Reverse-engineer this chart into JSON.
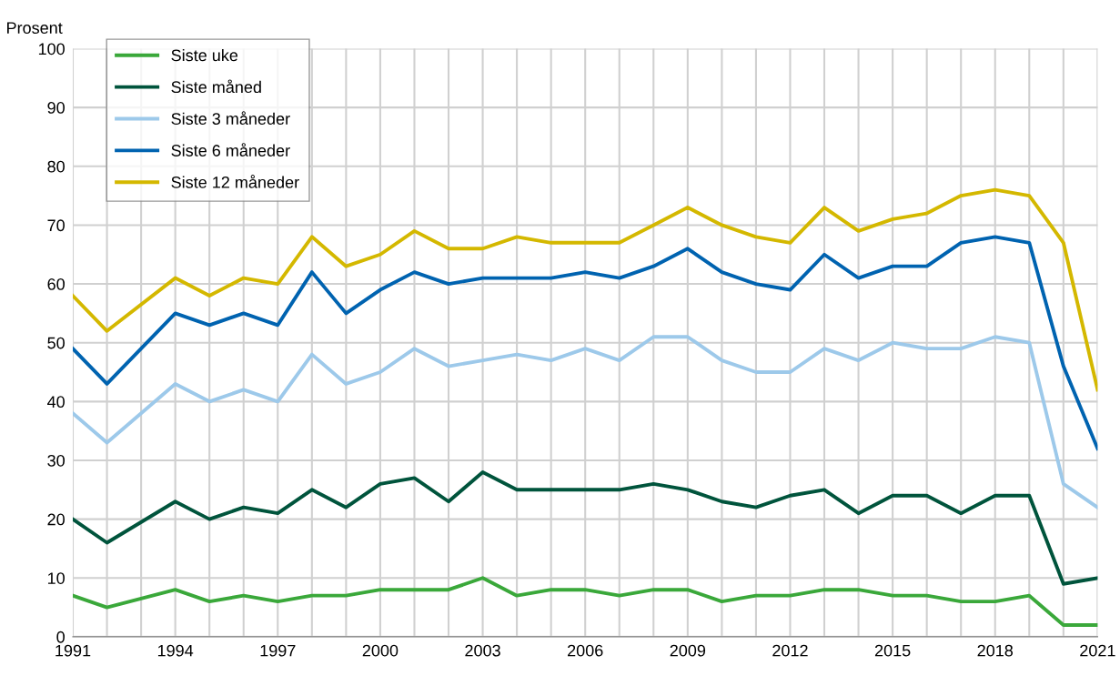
{
  "chart_data": {
    "type": "line",
    "ylabel": "Prosent",
    "x": [
      1991,
      1992,
      1994,
      1995,
      1996,
      1997,
      1998,
      1999,
      2000,
      2001,
      2002,
      2003,
      2004,
      2005,
      2006,
      2007,
      2008,
      2009,
      2010,
      2011,
      2012,
      2013,
      2014,
      2015,
      2016,
      2017,
      2018,
      2019,
      2020,
      2021
    ],
    "series": [
      {
        "name": "Siste uke",
        "color": "#3aa83a",
        "values": [
          7,
          5,
          8,
          6,
          7,
          6,
          7,
          7,
          8,
          8,
          8,
          10,
          7,
          8,
          8,
          7,
          8,
          8,
          6,
          7,
          7,
          8,
          8,
          7,
          7,
          6,
          6,
          7,
          2,
          2
        ]
      },
      {
        "name": "Siste måned",
        "color": "#00543c",
        "values": [
          20,
          16,
          23,
          20,
          22,
          21,
          25,
          22,
          26,
          27,
          23,
          28,
          25,
          25,
          25,
          25,
          26,
          25,
          23,
          22,
          24,
          25,
          21,
          24,
          24,
          21,
          24,
          24,
          9,
          10
        ]
      },
      {
        "name": "Siste 3 måneder",
        "color": "#9dc9ea",
        "values": [
          38,
          33,
          43,
          40,
          42,
          40,
          48,
          43,
          45,
          49,
          46,
          47,
          48,
          47,
          49,
          47,
          51,
          51,
          47,
          45,
          45,
          49,
          47,
          50,
          49,
          49,
          51,
          50,
          26,
          22
        ]
      },
      {
        "name": "Siste 6 måneder",
        "color": "#0063b0",
        "values": [
          49,
          43,
          55,
          53,
          55,
          53,
          62,
          55,
          59,
          62,
          60,
          61,
          61,
          61,
          62,
          61,
          63,
          66,
          62,
          60,
          59,
          65,
          61,
          63,
          63,
          67,
          68,
          67,
          46,
          32
        ]
      },
      {
        "name": "Siste 12 måneder",
        "color": "#d4b800",
        "values": [
          58,
          52,
          61,
          58,
          61,
          60,
          68,
          63,
          65,
          69,
          66,
          66,
          68,
          67,
          67,
          67,
          70,
          73,
          70,
          68,
          67,
          73,
          69,
          71,
          72,
          75,
          76,
          75,
          67,
          42
        ]
      }
    ],
    "xlim": [
      1991,
      2021
    ],
    "xticks": [
      1991,
      {
        "value": 1992,
        "label": null
      },
      {
        "value": 1993,
        "label": null
      },
      1994,
      {
        "value": 1995,
        "label": null
      },
      {
        "value": 1996,
        "label": null
      },
      1997,
      {
        "value": 1998,
        "label": null
      },
      {
        "value": 1999,
        "label": null
      },
      2000,
      {
        "value": 2001,
        "label": null
      },
      {
        "value": 2002,
        "label": null
      },
      2003,
      {
        "value": 2004,
        "label": null
      },
      {
        "value": 2005,
        "label": null
      },
      2006,
      {
        "value": 2007,
        "label": null
      },
      {
        "value": 2008,
        "label": null
      },
      2009,
      {
        "value": 2010,
        "label": null
      },
      {
        "value": 2011,
        "label": null
      },
      2012,
      {
        "value": 2013,
        "label": null
      },
      {
        "value": 2014,
        "label": null
      },
      2015,
      {
        "value": 2016,
        "label": null
      },
      {
        "value": 2017,
        "label": null
      },
      2018,
      {
        "value": 2019,
        "label": null
      },
      {
        "value": 2020,
        "label": null
      },
      2021
    ],
    "ylim": [
      0,
      100
    ],
    "yticks": [
      0,
      10,
      20,
      30,
      40,
      50,
      60,
      70,
      80,
      90,
      100
    ],
    "grid": true,
    "legend": "top left",
    "marker": "none",
    "line_style": "solid"
  }
}
